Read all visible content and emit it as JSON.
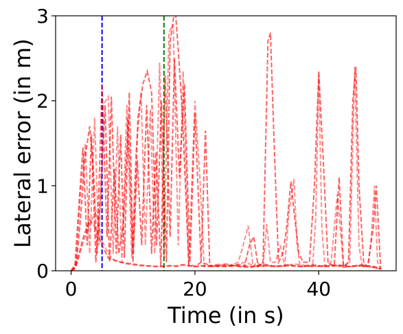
{
  "chart_data": {
    "type": "line",
    "title": "",
    "xlabel": "Time (in s)",
    "ylabel": "Lateral error (in m)",
    "xlim": [
      -2.5,
      52.5
    ],
    "ylim": [
      0,
      3
    ],
    "xticks": [
      0,
      20,
      40
    ],
    "yticks": [
      0,
      1,
      2,
      3
    ],
    "grid": false,
    "legend": "none",
    "colors": {
      "series": "#ff0000",
      "vline_blue": "#0000ff",
      "vline_green": "#008000"
    },
    "vlines": [
      {
        "x": 5,
        "color": "#0000ff",
        "style": "dashed"
      },
      {
        "x": 15,
        "color": "#008000",
        "style": "dashed"
      }
    ],
    "series": [
      {
        "x": [
          0,
          0.8,
          1.5,
          2.2,
          3.0,
          3.6,
          4.2,
          5.0,
          5.8,
          6.5,
          7.3,
          8.0,
          8.6,
          9.4,
          10.0,
          10.8,
          11.6,
          12.3,
          13.0,
          13.8,
          14.6,
          15.4,
          16.0,
          16.8,
          17.4,
          18.0,
          19.0,
          20.0,
          21.0,
          23,
          25,
          27,
          29,
          31,
          33,
          35,
          37,
          39,
          41,
          43,
          45,
          47,
          49,
          50
        ],
        "y": [
          0,
          0.05,
          0.6,
          1.3,
          1.7,
          1.2,
          0.2,
          2.2,
          0.4,
          2.05,
          0.2,
          1.6,
          0.15,
          2.1,
          0.2,
          1.8,
          2.2,
          2.35,
          2.1,
          0.3,
          2.0,
          0.1,
          2.7,
          3.1,
          2.5,
          1.8,
          0.08,
          0.05,
          0.1,
          0.05,
          0.08,
          0.05,
          0.04,
          0.08,
          0.05,
          0.06,
          0.05,
          0.07,
          0.05,
          0.06,
          0.05,
          0.07,
          0.04,
          0.02
        ]
      },
      {
        "x": [
          0,
          0.8,
          1.5,
          2.3,
          3.0,
          3.8,
          4.5,
          5.2,
          6.0,
          6.8,
          7.5,
          8.2,
          9.0,
          9.8,
          10.5,
          11.3,
          12.0,
          12.8,
          13.5,
          14.3,
          15.0,
          15.8,
          16.5,
          17.3,
          18.1,
          19.0,
          20.0,
          20.8,
          21.5,
          22.5,
          24,
          26,
          28,
          30,
          32,
          34,
          36,
          38,
          40,
          42,
          44,
          46,
          48,
          50
        ],
        "y": [
          0,
          0.1,
          0.9,
          1.5,
          0.2,
          1.8,
          0.3,
          1.95,
          2.05,
          0.2,
          1.7,
          0.1,
          1.95,
          0.15,
          1.4,
          2.1,
          0.3,
          1.9,
          0.2,
          2.45,
          0.15,
          2.8,
          2.9,
          0.3,
          2.35,
          0.05,
          2.0,
          1.1,
          0.05,
          0.06,
          0.08,
          0.05,
          0.1,
          0.05,
          0.06,
          0.05,
          0.08,
          0.06,
          0.05,
          0.07,
          0.04,
          0.06,
          0.05,
          0.02
        ]
      },
      {
        "x": [
          0,
          0.6,
          1.2,
          1.9,
          2.6,
          3.3,
          4.0,
          4.8,
          5.5,
          6.2,
          7.0,
          7.7,
          8.5,
          9.2,
          10.0,
          10.7,
          11.4,
          12.2,
          13.0,
          13.7,
          14.5,
          15.2,
          16.0,
          16.7,
          17.5,
          18.3,
          19.2,
          20.0,
          21.0,
          21.7,
          22.4,
          23.5,
          25,
          27,
          29,
          31,
          33,
          35,
          37,
          39,
          41,
          43,
          45,
          47,
          49,
          50
        ],
        "y": [
          0,
          0.05,
          0.7,
          1.45,
          0.3,
          1.6,
          0.1,
          0.9,
          1.95,
          0.1,
          1.2,
          0.2,
          0.6,
          1.8,
          0.1,
          1.3,
          0.3,
          1.95,
          0.2,
          1.4,
          0.05,
          2.3,
          0.4,
          2.5,
          1.1,
          2.2,
          0.1,
          1.85,
          0.1,
          1.65,
          0.05,
          0.06,
          0.05,
          0.07,
          0.05,
          0.06,
          0.05,
          0.07,
          0.05,
          0.06,
          0.05,
          0.07,
          0.05,
          0.06,
          0.05,
          0.02
        ]
      },
      {
        "x": [
          0,
          0.5,
          1.0,
          2.0,
          3.0,
          4.0,
          5.0,
          6.0,
          7.0,
          8.0,
          9.0,
          10.0,
          11.0,
          12.0,
          13.0,
          14.0,
          15.0,
          16.0,
          17.0,
          18.0,
          19.0,
          20.0,
          21.0,
          22.0,
          23.0,
          24.0,
          26.0,
          27.0,
          27.8,
          28.6,
          29.4,
          30.0,
          31.0,
          31.6,
          32.2,
          33.0,
          33.8,
          34.5,
          35.2,
          36.0,
          36.5,
          37.0,
          38.0,
          39.0,
          39.5,
          40.0,
          40.5,
          41.0,
          42.0,
          43.0,
          44.0,
          45.0,
          45.8,
          46.5,
          47.0,
          48.0,
          48.5,
          49.0,
          49.5,
          50.0
        ],
        "y": [
          0,
          0.02,
          0.1,
          0.35,
          0.55,
          0.7,
          0.35,
          0.2,
          0.12,
          0.1,
          0.08,
          0.07,
          0.06,
          0.06,
          0.05,
          0.05,
          0.05,
          0.06,
          0.06,
          0.07,
          0.06,
          0.05,
          0.06,
          0.05,
          0.06,
          0.05,
          0.07,
          0.1,
          0.3,
          0.53,
          0.05,
          0.1,
          0.05,
          0.55,
          0.1,
          0.1,
          0.3,
          0.05,
          0.7,
          1.08,
          0.3,
          0.05,
          0.05,
          0.05,
          0.6,
          2.3,
          0.5,
          0.05,
          0.1,
          0.9,
          0.05,
          0.1,
          2.4,
          0.3,
          0.05,
          0.05,
          0.4,
          1.0,
          0.1,
          0.02
        ]
      },
      {
        "x": [
          0,
          0.5,
          1.0,
          2.0,
          3.0,
          4.0,
          5.0,
          6.0,
          8.0,
          10.0,
          12.0,
          14.0,
          16.0,
          17.0,
          18.0,
          19.0,
          20.0,
          22.0,
          24.0,
          26.0,
          28.0,
          28.8,
          29.5,
          30.2,
          31.0,
          31.8,
          32.2,
          32.8,
          33.5,
          34.2,
          34.8,
          35.5,
          36.0,
          36.8,
          37.5,
          38.5,
          39.3,
          40.0,
          40.8,
          41.5,
          42.5,
          43.3,
          44.0,
          44.8,
          45.5,
          46.0,
          46.5,
          47.3,
          48.0,
          48.8,
          49.3,
          49.8,
          50.0
        ],
        "y": [
          0,
          0.02,
          0.12,
          0.4,
          0.6,
          0.5,
          0.3,
          0.15,
          0.1,
          0.08,
          0.06,
          0.05,
          0.06,
          0.05,
          0.07,
          0.06,
          0.05,
          0.06,
          0.05,
          0.06,
          0.05,
          0.3,
          0.4,
          0.05,
          0.1,
          2.7,
          2.8,
          1.5,
          0.1,
          0.2,
          0.5,
          1.05,
          0.7,
          0.2,
          0.1,
          0.1,
          1.0,
          2.35,
          1.2,
          0.1,
          0.05,
          1.1,
          0.05,
          0.1,
          2.0,
          2.4,
          1.0,
          0.05,
          0.1,
          0.5,
          1.0,
          0.3,
          0.02
        ]
      }
    ]
  }
}
